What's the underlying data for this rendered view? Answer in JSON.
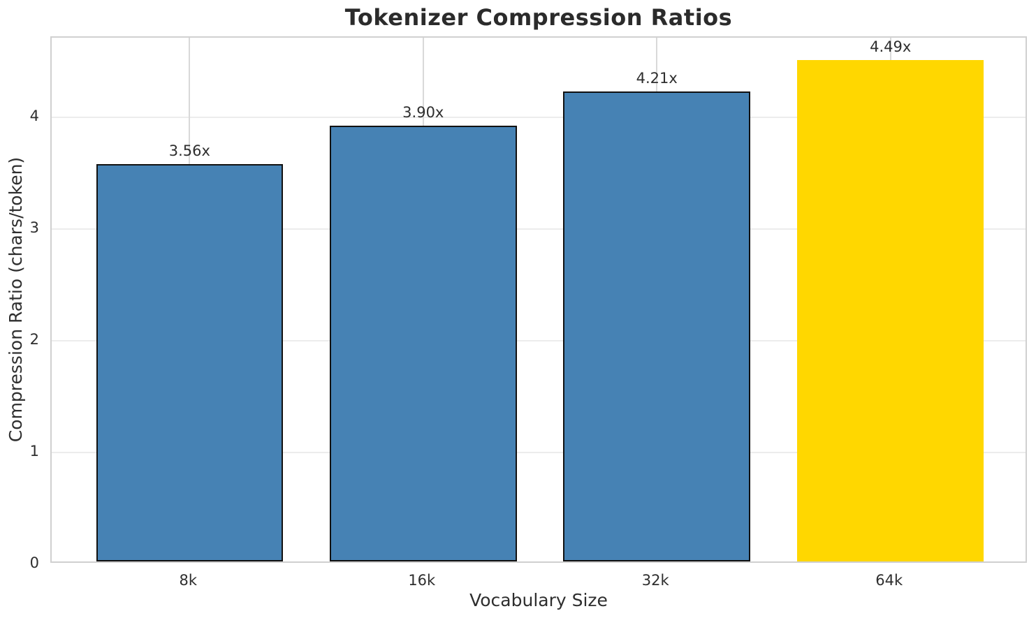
{
  "chart_data": {
    "type": "bar",
    "title": "Tokenizer Compression Ratios",
    "xlabel": "Vocabulary Size",
    "ylabel": "Compression Ratio (chars/token)",
    "categories": [
      "8k",
      "16k",
      "32k",
      "64k"
    ],
    "values": [
      3.56,
      3.9,
      4.21,
      4.49
    ],
    "bar_labels": [
      "3.56x",
      "3.90x",
      "4.21x",
      "4.49x"
    ],
    "yticks": [
      "0",
      "1",
      "2",
      "3",
      "4"
    ],
    "ytick_values": [
      0,
      1,
      2,
      3,
      4
    ],
    "ylim": [
      0,
      4.7145
    ],
    "grid": true,
    "legend": null,
    "highlight_index": 3,
    "bar_colors": [
      "#4682b4",
      "#4682b4",
      "#4682b4",
      "#ffd700"
    ],
    "bar_edge_colors": [
      "#111111",
      "#111111",
      "#111111",
      "none"
    ],
    "colors": {
      "bar_default": "#4682b4",
      "bar_highlight": "#ffd700",
      "bar_edge": "#111111",
      "grid_horizontal": "#ececec",
      "grid_vertical": "#d9d9d9",
      "spine": "#d0d0d0",
      "text": "#2e2e2e",
      "title_text": "#2b2b2b",
      "background": "#ffffff"
    }
  }
}
